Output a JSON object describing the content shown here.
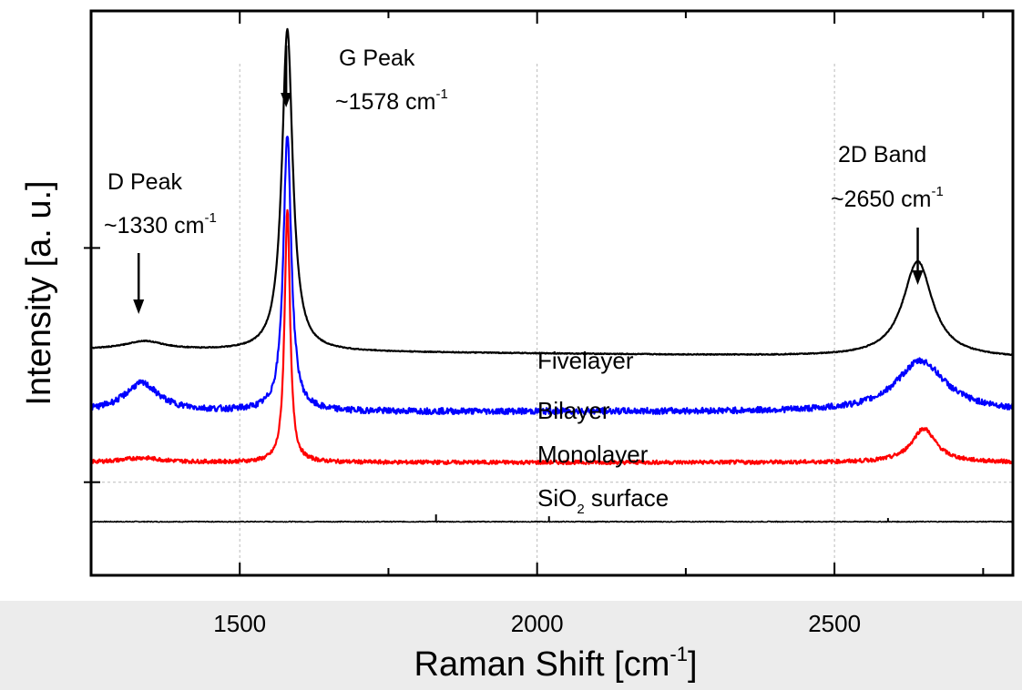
{
  "chart_data": {
    "type": "line",
    "xlabel": "Raman Shift [cm",
    "xlabel_sup": "-1",
    "xlabel_close": "]",
    "ylabel": "Intensity [a. u.]",
    "xlim": [
      1250,
      2800
    ],
    "ylim": [
      0,
      100
    ],
    "x_ticks": [
      1500,
      2000,
      2500
    ],
    "x_tick_labels": [
      "1500",
      "2000",
      "2500"
    ],
    "grid": "dashed",
    "annotations": [
      {
        "name": "G Peak",
        "value": "~1578 cm",
        "sup": "-1",
        "x": 1578
      },
      {
        "name": "D Peak",
        "value": "~1330 cm",
        "sup": "-1",
        "x": 1330
      },
      {
        "name": "2D Band",
        "value": "~2650 cm",
        "sup": "-1",
        "x": 2640
      }
    ],
    "series": [
      {
        "name": "Fivelayer",
        "color": "#000000",
        "baseline": 40,
        "peaks": [
          {
            "center": 1340,
            "height": 1.5,
            "width": 40
          },
          {
            "center": 1580,
            "height": 57,
            "width": 11
          },
          {
            "center": 2640,
            "height": 17,
            "width": 30
          }
        ]
      },
      {
        "name": "Bilayer",
        "color": "#0000ff",
        "baseline": 29,
        "peaks": [
          {
            "center": 1335,
            "height": 5,
            "width": 35
          },
          {
            "center": 1580,
            "height": 49,
            "width": 8
          },
          {
            "center": 2645,
            "height": 9,
            "width": 50
          }
        ]
      },
      {
        "name": "Monolayer",
        "color": "#ff0000",
        "baseline": 20,
        "peaks": [
          {
            "center": 1335,
            "height": 0.8,
            "width": 40
          },
          {
            "center": 1580,
            "height": 45,
            "width": 5.5
          },
          {
            "center": 2650,
            "height": 6,
            "width": 25
          }
        ]
      },
      {
        "name": "SiO",
        "name_sub": "2",
        "name_rest": " surface",
        "color": "#000000",
        "baseline": 9.5,
        "peaks": []
      }
    ]
  }
}
